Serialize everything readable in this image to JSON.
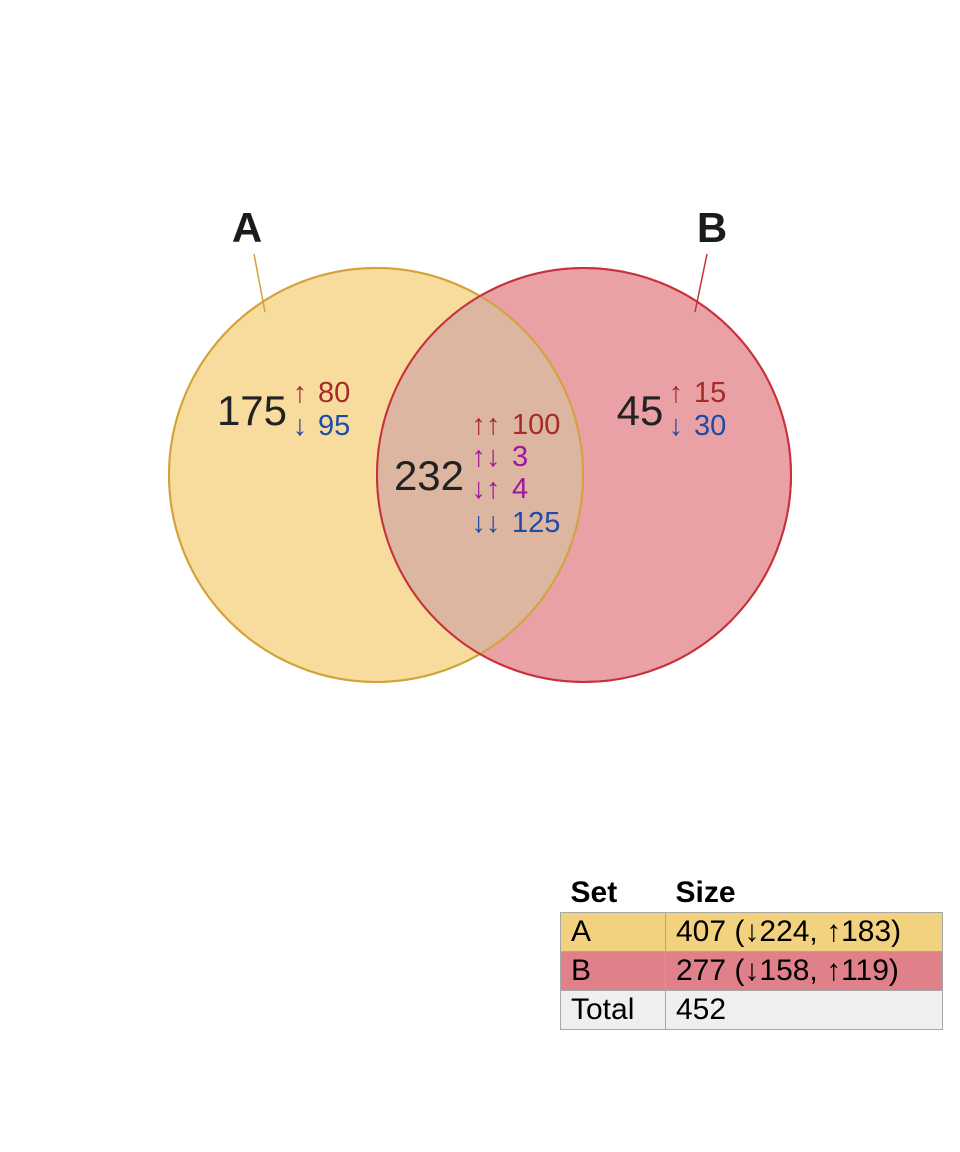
{
  "diagram": {
    "type": "venn",
    "sets": [
      {
        "name": "A",
        "fill": "#f2c96a",
        "stroke": "#d3a33a"
      },
      {
        "name": "B",
        "fill": "#e0797f",
        "stroke": "#c8323c"
      }
    ],
    "overlap_fill": "#dcb6a0",
    "regions": {
      "a_only": {
        "total": "175",
        "rows": [
          {
            "arrows": "↑",
            "value": "80",
            "kind": "up"
          },
          {
            "arrows": "↓",
            "value": "95",
            "kind": "down"
          }
        ]
      },
      "intersection": {
        "total": "232",
        "rows": [
          {
            "arrows": "↑↑",
            "value": "100",
            "kind": "up"
          },
          {
            "arrows": "↑↓",
            "value": "3",
            "kind": "mixed"
          },
          {
            "arrows": "↓↑",
            "value": "4",
            "kind": "mixed"
          },
          {
            "arrows": "↓↓",
            "value": "125",
            "kind": "down"
          }
        ]
      },
      "b_only": {
        "total": "45",
        "rows": [
          {
            "arrows": "↑",
            "value": "15",
            "kind": "up"
          },
          {
            "arrows": "↓",
            "value": "30",
            "kind": "down"
          }
        ]
      }
    }
  },
  "table": {
    "headers": [
      "Set",
      "Size"
    ],
    "rows": [
      {
        "set": "A",
        "size": "407 (↓224, ↑183)",
        "bg": "#f2d27e"
      },
      {
        "set": "B",
        "size": "277 (↓158, ↑119)",
        "bg": "#e0808a"
      },
      {
        "set": "Total",
        "size": "452",
        "bg": "#efefef"
      }
    ]
  }
}
